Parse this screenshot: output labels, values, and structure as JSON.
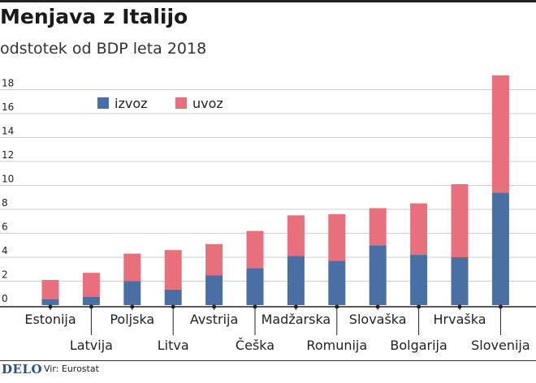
{
  "chart_data": {
    "type": "bar",
    "stacked": true,
    "title": "Menjava z Italijo",
    "subtitle": "odstotek od BDP leta 2018",
    "categories": [
      "Estonija",
      "Latvija",
      "Poljska",
      "Litva",
      "Avstrija",
      "Češka",
      "Madžarska",
      "Romunija",
      "Slovaška",
      "Bolgarija",
      "Hrvaška",
      "Slovenija"
    ],
    "series": [
      {
        "name": "izvoz",
        "color": "#4a6fa5",
        "values": [
          0.5,
          0.7,
          2.0,
          1.3,
          2.5,
          3.1,
          4.1,
          3.7,
          5.0,
          4.2,
          4.0,
          9.4
        ]
      },
      {
        "name": "uvoz",
        "color": "#e8707c",
        "values": [
          1.6,
          2.0,
          2.3,
          3.3,
          2.6,
          3.1,
          3.4,
          3.9,
          3.1,
          4.3,
          6.1,
          9.8
        ]
      }
    ],
    "yticks": [
      0,
      2,
      4,
      6,
      8,
      10,
      12,
      14,
      16,
      18
    ],
    "ylim": [
      0,
      19.5
    ],
    "grid": true,
    "legend_position": "top-left"
  },
  "footer": {
    "logo": "DELO",
    "source": "Vir: Eurostat"
  }
}
